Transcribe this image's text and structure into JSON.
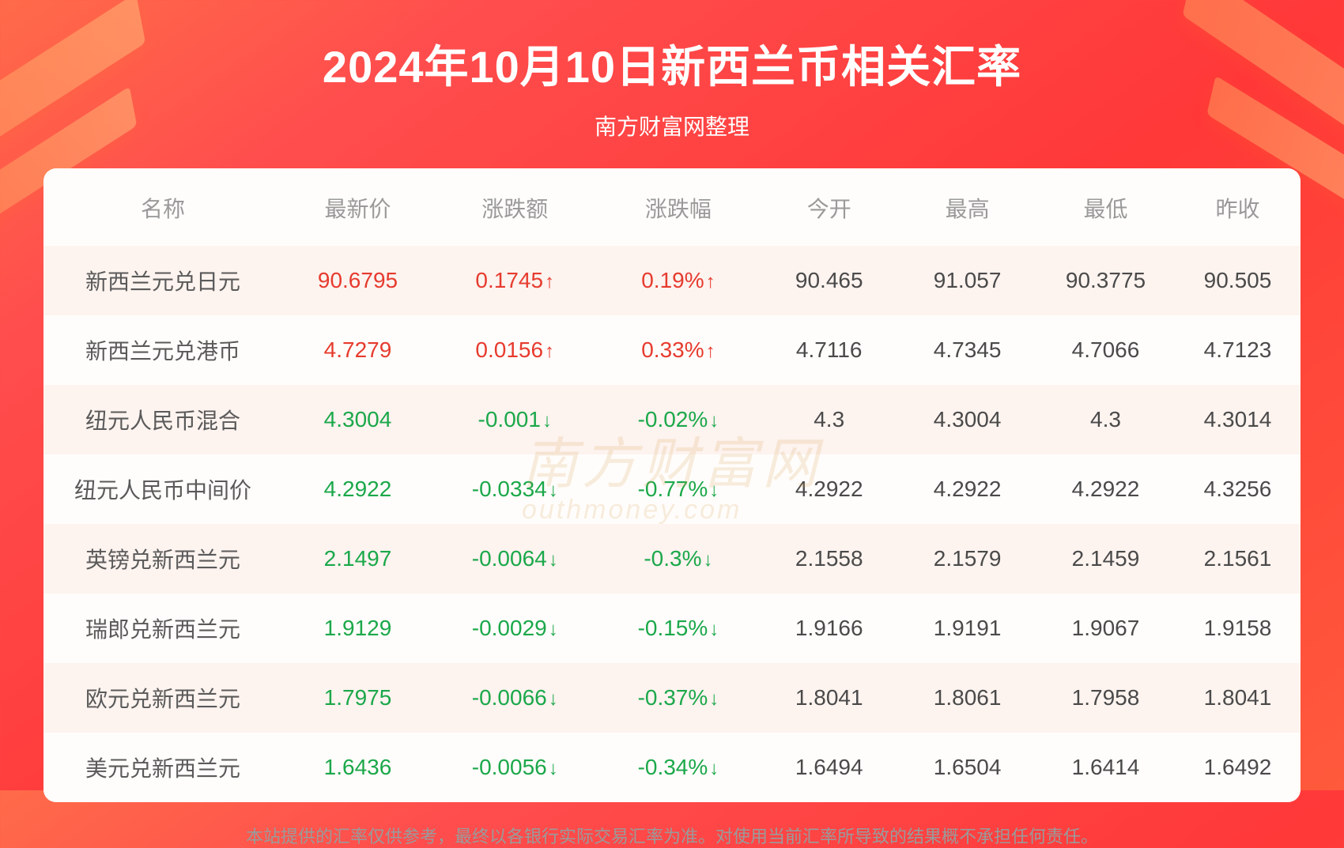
{
  "header": {
    "title": "2024年10月10日新西兰币相关汇率",
    "subtitle": "南方财富网整理"
  },
  "table": {
    "columns": [
      "名称",
      "最新价",
      "涨跌额",
      "涨跌幅",
      "今开",
      "最高",
      "最低",
      "昨收"
    ],
    "rows": [
      {
        "name": "新西兰元兑日元",
        "price": "90.6795",
        "change": "0.1745",
        "pct": "0.19%",
        "dir": "up",
        "open": "90.465",
        "high": "91.057",
        "low": "90.3775",
        "prev": "90.505"
      },
      {
        "name": "新西兰元兑港币",
        "price": "4.7279",
        "change": "0.0156",
        "pct": "0.33%",
        "dir": "up",
        "open": "4.7116",
        "high": "4.7345",
        "low": "4.7066",
        "prev": "4.7123"
      },
      {
        "name": "纽元人民币混合",
        "price": "4.3004",
        "change": "-0.001",
        "pct": "-0.02%",
        "dir": "down",
        "open": "4.3",
        "high": "4.3004",
        "low": "4.3",
        "prev": "4.3014"
      },
      {
        "name": "纽元人民币中间价",
        "price": "4.2922",
        "change": "-0.0334",
        "pct": "-0.77%",
        "dir": "down",
        "open": "4.2922",
        "high": "4.2922",
        "low": "4.2922",
        "prev": "4.3256"
      },
      {
        "name": "英镑兑新西兰元",
        "price": "2.1497",
        "change": "-0.0064",
        "pct": "-0.3%",
        "dir": "down",
        "open": "2.1558",
        "high": "2.1579",
        "low": "2.1459",
        "prev": "2.1561"
      },
      {
        "name": "瑞郎兑新西兰元",
        "price": "1.9129",
        "change": "-0.0029",
        "pct": "-0.15%",
        "dir": "down",
        "open": "1.9166",
        "high": "1.9191",
        "low": "1.9067",
        "prev": "1.9158"
      },
      {
        "name": "欧元兑新西兰元",
        "price": "1.7975",
        "change": "-0.0066",
        "pct": "-0.37%",
        "dir": "down",
        "open": "1.8041",
        "high": "1.8061",
        "low": "1.7958",
        "prev": "1.8041"
      },
      {
        "name": "美元兑新西兰元",
        "price": "1.6436",
        "change": "-0.0056",
        "pct": "-0.34%",
        "dir": "down",
        "open": "1.6494",
        "high": "1.6504",
        "low": "1.6414",
        "prev": "1.6492"
      }
    ]
  },
  "style": {
    "up_color": "#e63b2e",
    "down_color": "#1ba84a",
    "neutral_text": "#4a4a4a",
    "header_text": "#9a9a9a",
    "stripe_odd": "#fdf3ef",
    "stripe_even": "#fffdfb",
    "card_bg": "#fffdfb",
    "page_bg_gradient": [
      "#ff6b4a",
      "#ff4d4d",
      "#ff3838",
      "#ff5a3c"
    ],
    "title_fontsize": 56,
    "subtitle_fontsize": 28,
    "cell_fontsize": 28,
    "arrow_up": "↑",
    "arrow_down": "↓"
  },
  "watermark": {
    "main": "南方财富网",
    "sub": "outhmoney.com"
  },
  "disclaimer": "本站提供的汇率仅供参考，最终以各银行实际交易汇率为准。对使用当前汇率所导致的结果概不承担任何责任。"
}
